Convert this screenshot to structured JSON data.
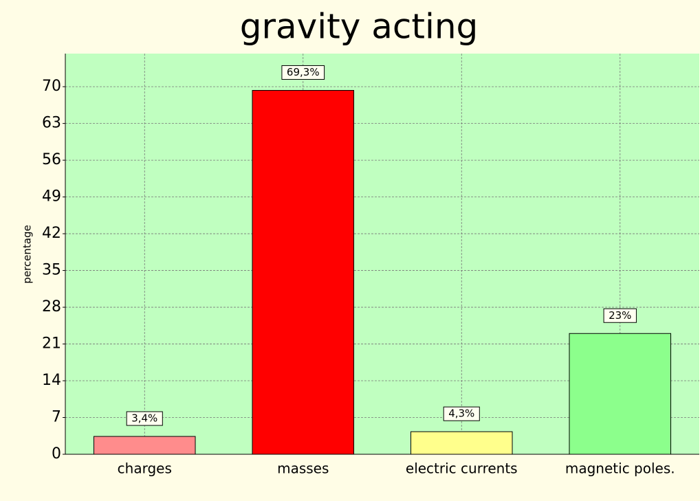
{
  "chart_data": {
    "type": "bar",
    "title": "gravity acting",
    "y_label": "percentage",
    "categories": [
      "charges",
      "masses",
      "electric currents",
      "magnetic poles."
    ],
    "values": [
      3.4,
      69.3,
      4.3,
      23
    ],
    "value_labels": [
      "3,4%",
      "69,3%",
      "4,3%",
      "23%"
    ],
    "colors": [
      "#ff8c8c",
      "#ff0000",
      "#ffff8c",
      "#8cff8c"
    ],
    "ylim": [
      0,
      76.3
    ],
    "yticks": [
      0,
      7,
      14,
      21,
      28,
      35,
      42,
      49,
      56,
      63,
      70
    ],
    "grid": true
  }
}
